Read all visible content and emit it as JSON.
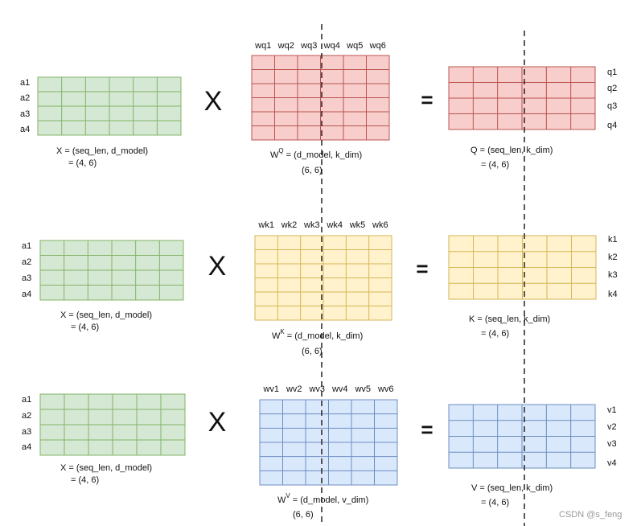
{
  "rows": [
    {
      "input": {
        "row_labels": [
          "a1",
          "a2",
          "a3",
          "a4"
        ],
        "caption": "X = (seq_len, d_model)",
        "shape": "= (4, 6)"
      },
      "operator": "X",
      "weight": {
        "col_labels": [
          "wq1",
          "wq2",
          "wq3",
          "wq4",
          "wq5",
          "wq6"
        ],
        "symbol": "W",
        "superscript": "Q",
        "caption": " = (d_model, k_dim)",
        "shape": "(6, 6)"
      },
      "equals": "=",
      "result": {
        "row_labels": [
          "q1",
          "q2",
          "q3",
          "q4"
        ],
        "caption": "Q = (seq_len, k_dim)",
        "shape": "= (4, 6)"
      }
    },
    {
      "input": {
        "row_labels": [
          "a1",
          "a2",
          "a3",
          "a4"
        ],
        "caption": "X = (seq_len, d_model)",
        "shape": "= (4, 6)"
      },
      "operator": "X",
      "weight": {
        "col_labels": [
          "wk1",
          "wk2",
          "wk3",
          "wk4",
          "wk5",
          "wk6"
        ],
        "symbol": "W",
        "superscript": "K",
        "caption": " = (d_model, k_dim)",
        "shape": "(6, 6)"
      },
      "equals": "=",
      "result": {
        "row_labels": [
          "k1",
          "k2",
          "k3",
          "k4"
        ],
        "caption": "K = (seq_len, k_dim)",
        "shape": "= (4, 6)"
      }
    },
    {
      "input": {
        "row_labels": [
          "a1",
          "a2",
          "a3",
          "a4"
        ],
        "caption": "X = (seq_len, d_model)",
        "shape": "= (4, 6)"
      },
      "operator": "X",
      "weight": {
        "col_labels": [
          "wv1",
          "wv2",
          "wv3",
          "wv4",
          "wv5",
          "wv6"
        ],
        "symbol": "W",
        "superscript": "V",
        "caption": " = (d_model, v_dim)",
        "shape": "(6, 6)"
      },
      "equals": "=",
      "result": {
        "row_labels": [
          "v1",
          "v2",
          "v3",
          "v4"
        ],
        "caption": "V = (seq_len, k_dim)",
        "shape": "= (4, 6)"
      }
    }
  ],
  "watermark": "CSDN @s_feng"
}
